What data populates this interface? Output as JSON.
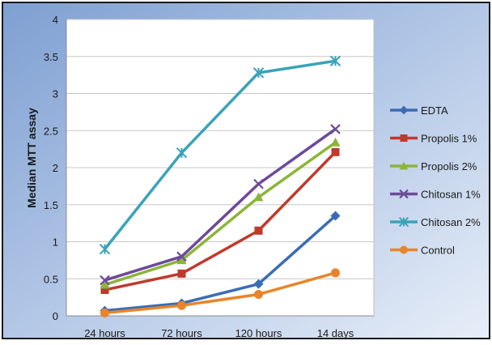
{
  "chart_data": {
    "type": "line",
    "title": "",
    "xlabel": "",
    "ylabel": "Median MTT assay",
    "categories": [
      "24 hours",
      "72 hours",
      "120 hours",
      "14 days"
    ],
    "y_ticks": [
      "0",
      "0.5",
      "1",
      "1.5",
      "2",
      "2.5",
      "3",
      "3.5",
      "4"
    ],
    "ylim": [
      0,
      4
    ],
    "grid": "horizontal",
    "legend_position": "right",
    "series": [
      {
        "name": "EDTA",
        "color": "#3a6db5",
        "marker": "diamond",
        "values": [
          0.07,
          0.17,
          0.43,
          1.35
        ]
      },
      {
        "name": "Propolis 1%",
        "color": "#c0392b",
        "marker": "square",
        "values": [
          0.35,
          0.57,
          1.15,
          2.21
        ]
      },
      {
        "name": "Propolis 2%",
        "color": "#8bb53a",
        "marker": "triangle",
        "values": [
          0.42,
          0.75,
          1.6,
          2.34
        ]
      },
      {
        "name": "Chitosan 1%",
        "color": "#6d4a9a",
        "marker": "x",
        "values": [
          0.48,
          0.8,
          1.78,
          2.52
        ]
      },
      {
        "name": "Chitosan 2%",
        "color": "#3aa3b8",
        "marker": "star",
        "values": [
          0.9,
          2.2,
          3.28,
          3.44
        ]
      },
      {
        "name": "Control",
        "color": "#e8852a",
        "marker": "circle",
        "values": [
          0.04,
          0.14,
          0.29,
          0.58
        ]
      }
    ]
  }
}
